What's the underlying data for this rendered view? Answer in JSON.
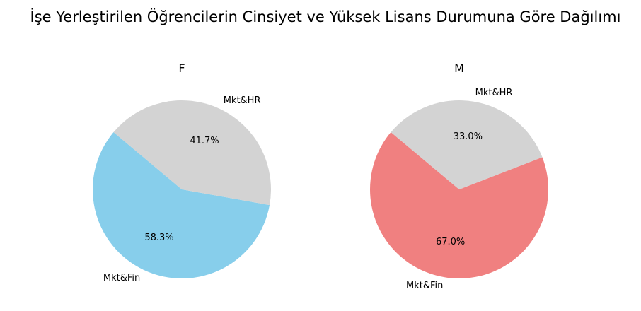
{
  "suptitle": "İşe Yerleştirilen Öğrencilerin Cinsiyet ve Yüksek Lisans Durumuna Göre Dağılımı",
  "chart_data": [
    {
      "type": "pie",
      "title": "F",
      "labels": [
        "Mkt&Fin",
        "Mkt&HR"
      ],
      "values": [
        58.3,
        41.7
      ],
      "value_labels": [
        "58.3%",
        "41.7%"
      ],
      "colors": [
        "#87CEEB",
        "#D3D3D3"
      ],
      "start_angle_deg": 140
    },
    {
      "type": "pie",
      "title": "M",
      "labels": [
        "Mkt&Fin",
        "Mkt&HR"
      ],
      "values": [
        67.0,
        33.0
      ],
      "value_labels": [
        "67.0%",
        "33.0%"
      ],
      "colors": [
        "#F08080",
        "#D3D3D3"
      ],
      "start_angle_deg": 140
    }
  ]
}
